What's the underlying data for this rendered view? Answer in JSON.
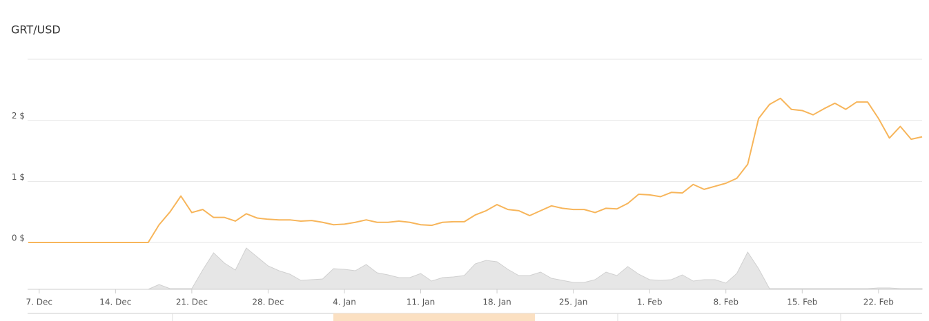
{
  "chart_data": {
    "type": "line",
    "title": "GRT/USD",
    "x": [
      "6. Dec",
      "7. Dec",
      "8. Dec",
      "9. Dec",
      "10. Dec",
      "11. Dec",
      "12. Dec",
      "13. Dec",
      "14. Dec",
      "15. Dec",
      "16. Dec",
      "17. Dec",
      "18. Dec",
      "19. Dec",
      "20. Dec",
      "21. Dec",
      "22. Dec",
      "23. Dec",
      "24. Dec",
      "25. Dec",
      "26. Dec",
      "27. Dec",
      "28. Dec",
      "29. Dec",
      "30. Dec",
      "31. Dec",
      "1. Jan",
      "2. Jan",
      "3. Jan",
      "4. Jan",
      "5. Jan",
      "6. Jan",
      "7. Jan",
      "8. Jan",
      "9. Jan",
      "10. Jan",
      "11. Jan",
      "12. Jan",
      "13. Jan",
      "14. Jan",
      "15. Jan",
      "16. Jan",
      "17. Jan",
      "18. Jan",
      "19. Jan",
      "20. Jan",
      "21. Jan",
      "22. Jan",
      "23. Jan",
      "24. Jan",
      "25. Jan",
      "26. Jan",
      "27. Jan",
      "28. Jan",
      "29. Jan",
      "30. Jan",
      "31. Jan",
      "1. Feb",
      "2. Feb",
      "3. Feb",
      "4. Feb",
      "5. Feb",
      "6. Feb",
      "7. Feb",
      "8. Feb",
      "9. Feb",
      "10. Feb",
      "11. Feb",
      "12. Feb",
      "13. Feb",
      "14. Feb",
      "15. Feb",
      "16. Feb",
      "17. Feb",
      "18. Feb",
      "19. Feb",
      "20. Feb",
      "21. Feb",
      "22. Feb",
      "23. Feb",
      "24. Feb",
      "25. Feb",
      "26. Feb"
    ],
    "series": [
      {
        "name": "GRT/USD",
        "color": "#f7b55a",
        "values": [
          0,
          0,
          0,
          0,
          0,
          0,
          0,
          0,
          0,
          0,
          0,
          0,
          0.29,
          0.5,
          0.76,
          0.49,
          0.54,
          0.41,
          0.41,
          0.35,
          0.47,
          0.4,
          0.38,
          0.37,
          0.37,
          0.35,
          0.36,
          0.33,
          0.29,
          0.3,
          0.33,
          0.37,
          0.33,
          0.33,
          0.35,
          0.33,
          0.29,
          0.28,
          0.33,
          0.34,
          0.34,
          0.45,
          0.52,
          0.62,
          0.54,
          0.52,
          0.44,
          0.52,
          0.6,
          0.56,
          0.54,
          0.54,
          0.49,
          0.56,
          0.55,
          0.64,
          0.79,
          0.78,
          0.75,
          0.82,
          0.81,
          0.95,
          0.87,
          0.92,
          0.97,
          1.05,
          1.28,
          2.03,
          2.26,
          2.36,
          2.18,
          2.16,
          2.09,
          2.19,
          2.28,
          2.18,
          2.3,
          2.3,
          2.03,
          1.71,
          1.9,
          1.69,
          1.73
        ]
      },
      {
        "name": "Volume",
        "color": "#e6e6e6",
        "axis": "y2",
        "values": [
          0,
          0,
          0,
          0,
          0,
          0,
          0,
          0,
          0,
          0,
          0,
          0,
          7,
          1,
          1,
          1,
          28,
          53,
          38,
          28,
          60,
          47,
          34,
          27,
          22,
          13,
          14,
          15,
          30,
          29,
          27,
          36,
          24,
          21,
          17,
          17,
          23,
          12,
          17,
          18,
          20,
          37,
          42,
          40,
          29,
          20,
          20,
          25,
          16,
          13,
          10,
          10,
          14,
          25,
          20,
          33,
          22,
          14,
          13,
          14,
          21,
          12,
          14,
          14,
          9,
          23,
          54,
          30,
          1,
          1,
          1,
          1,
          1,
          1,
          1,
          1,
          1,
          1,
          2,
          2,
          1,
          1,
          1
        ]
      }
    ],
    "ylim": [
      0,
      3
    ],
    "yticks": [
      {
        "value": 0,
        "label": "0 $"
      },
      {
        "value": 1,
        "label": "1 $"
      },
      {
        "value": 2,
        "label": "2 $"
      }
    ],
    "y2lim": [
      0,
      62
    ],
    "xticks": [
      "7. Dec",
      "14. Dec",
      "21. Dec",
      "28. Dec",
      "4. Jan",
      "11. Jan",
      "18. Jan",
      "25. Jan",
      "1. Feb",
      "8. Feb",
      "15. Feb",
      "22. Feb"
    ],
    "grid": true
  }
}
